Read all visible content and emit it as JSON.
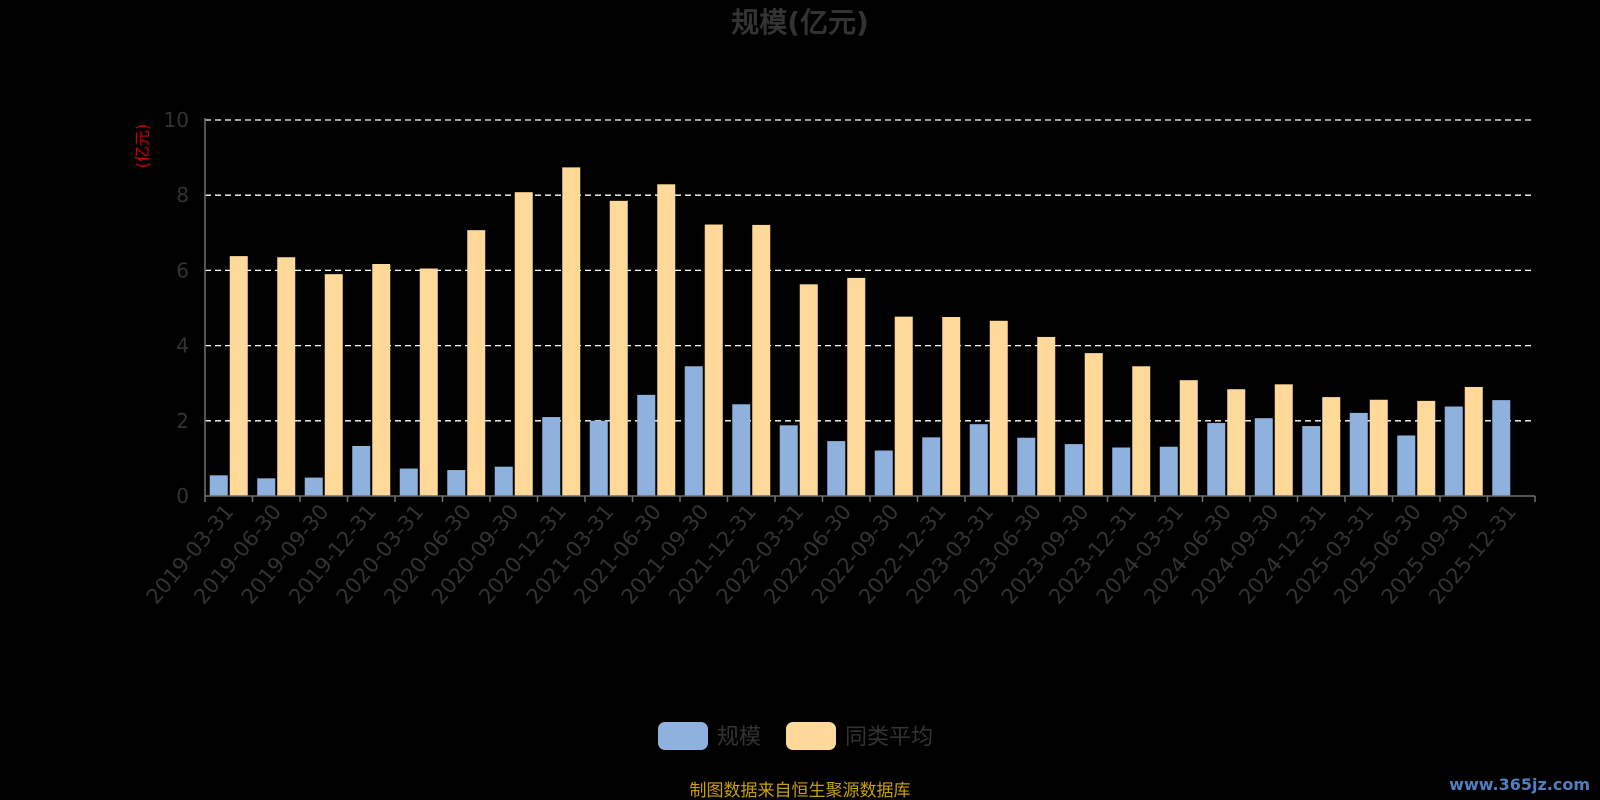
{
  "chart_data": {
    "type": "bar",
    "title": "规模(亿元)",
    "ylabel": "(亿元)",
    "ylim": [
      0,
      10
    ],
    "yticks": [
      0,
      2,
      4,
      6,
      8,
      10
    ],
    "grid": "horizontal-dashed",
    "legend_position": "bottom-center",
    "categories": [
      "2019-03-31",
      "2019-06-30",
      "2019-09-30",
      "2019-12-31",
      "2020-03-31",
      "2020-06-30",
      "2020-09-30",
      "2020-12-31",
      "2021-03-31",
      "2021-06-30",
      "2021-09-30",
      "2021-12-31",
      "2022-03-31",
      "2022-06-30",
      "2022-09-30",
      "2022-12-31",
      "2023-03-31",
      "2023-06-30",
      "2023-09-30",
      "2023-12-31",
      "2024-03-31",
      "2024-06-30",
      "2024-09-30",
      "2024-12-31",
      "2025-03-31",
      "2025-06-30",
      "2025-09-30",
      "2025-12-31"
    ],
    "series": [
      {
        "name": "规模",
        "color": "#8eb1de",
        "values": [
          0.55,
          0.47,
          0.49,
          1.33,
          0.73,
          0.69,
          0.78,
          2.1,
          2.0,
          2.69,
          3.45,
          2.44,
          1.88,
          1.46,
          1.21,
          1.56,
          1.91,
          1.55,
          1.38,
          1.29,
          1.31,
          1.94,
          2.07,
          1.86,
          2.21,
          1.61,
          2.38,
          2.55
        ]
      },
      {
        "name": "同类平均",
        "color": "#ffd999",
        "values": [
          6.38,
          6.35,
          5.9,
          6.17,
          6.05,
          7.07,
          8.08,
          8.74,
          7.85,
          8.29,
          7.22,
          7.21,
          5.63,
          5.8,
          4.77,
          4.76,
          4.66,
          4.23,
          3.8,
          3.45,
          3.08,
          2.84,
          2.97,
          2.63,
          2.56,
          2.53,
          2.9,
          null
        ]
      }
    ]
  },
  "source_note": "制图数据来自恒生聚源数据库",
  "watermark": "www.365jz.com"
}
